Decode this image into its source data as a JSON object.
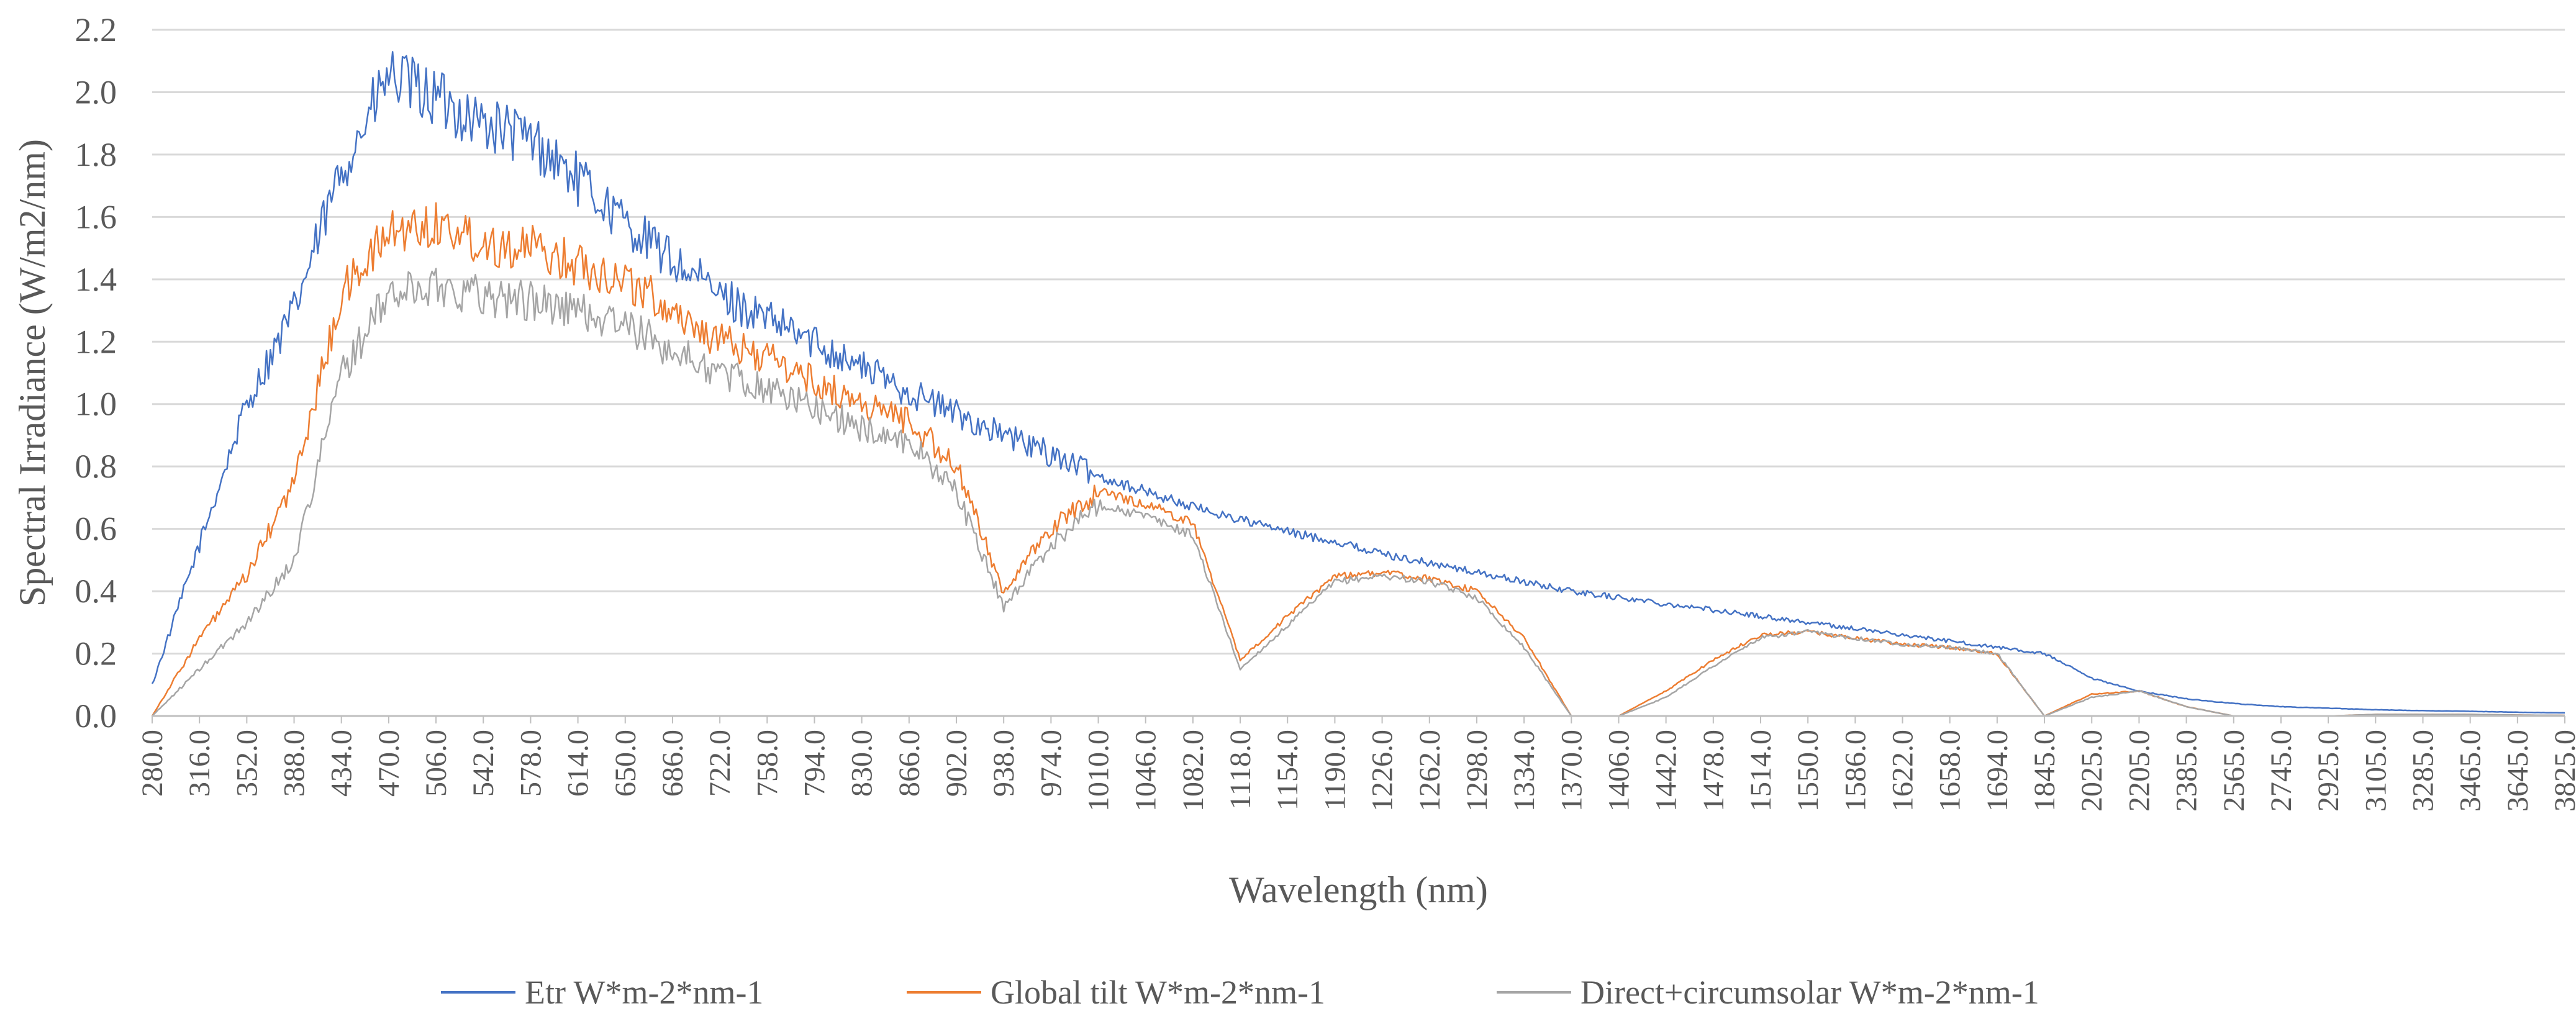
{
  "chart_data": {
    "type": "line",
    "title": "",
    "xlabel": "Wavelength (nm)",
    "ylabel": "Spectral Irradiance (W/m2/nm)",
    "ylim": [
      0,
      2.2
    ],
    "y_ticks": [
      "0.0",
      "0.2",
      "0.4",
      "0.6",
      "0.8",
      "1.0",
      "1.2",
      "1.4",
      "1.6",
      "1.8",
      "2.0",
      "2.2"
    ],
    "grid": "horizontal",
    "legend_position": "bottom",
    "x_scale": "categorical (variable nm spacing)",
    "categories": [
      "280.0",
      "316.0",
      "352.0",
      "388.0",
      "434.0",
      "470.0",
      "506.0",
      "542.0",
      "578.0",
      "614.0",
      "650.0",
      "686.0",
      "722.0",
      "758.0",
      "794.0",
      "830.0",
      "866.0",
      "902.0",
      "938.0",
      "974.0",
      "1010.0",
      "1046.0",
      "1082.0",
      "1118.0",
      "1154.0",
      "1190.0",
      "1226.0",
      "1262.0",
      "1298.0",
      "1334.0",
      "1370.0",
      "1406.0",
      "1442.0",
      "1478.0",
      "1514.0",
      "1550.0",
      "1586.0",
      "1622.0",
      "1658.0",
      "1694.0",
      "1845.0",
      "2025.0",
      "2205.0",
      "2385.0",
      "2565.0",
      "2745.0",
      "2925.0",
      "3105.0",
      "3285.0",
      "3465.0",
      "3645.0",
      "3825.0"
    ],
    "series": [
      {
        "name": "Etr W*m-2*nm-1",
        "color": "#4472C4",
        "values": [
          0.1,
          0.55,
          1.0,
          1.3,
          1.75,
          2.05,
          1.98,
          1.9,
          1.85,
          1.72,
          1.58,
          1.46,
          1.35,
          1.27,
          1.2,
          1.12,
          1.04,
          0.97,
          0.9,
          0.84,
          0.77,
          0.72,
          0.67,
          0.63,
          0.59,
          0.56,
          0.52,
          0.49,
          0.46,
          0.43,
          0.4,
          0.38,
          0.36,
          0.34,
          0.32,
          0.3,
          0.28,
          0.26,
          0.24,
          0.22,
          0.2,
          0.12,
          0.08,
          0.055,
          0.04,
          0.03,
          0.025,
          0.02,
          0.017,
          0.015,
          0.012,
          0.01
        ]
      },
      {
        "name": "Global tilt  W*m-2*nm-1",
        "color": "#ED7D31",
        "values": [
          0.0,
          0.25,
          0.45,
          0.75,
          1.35,
          1.55,
          1.58,
          1.52,
          1.5,
          1.45,
          1.4,
          1.3,
          1.2,
          1.15,
          1.07,
          1.0,
          0.95,
          0.8,
          0.4,
          0.6,
          0.72,
          0.68,
          0.62,
          0.18,
          0.32,
          0.45,
          0.46,
          0.44,
          0.4,
          0.25,
          0.0,
          0.0,
          0.08,
          0.18,
          0.26,
          0.27,
          0.25,
          0.23,
          0.22,
          0.2,
          0.0,
          0.07,
          0.08,
          0.03,
          0.0,
          0.0,
          0.0,
          0.005,
          0.005,
          0.005,
          0.003,
          0.002
        ]
      },
      {
        "name": "Direct+circumsolar W*m-2*nm-1",
        "color": "#A5A5A5",
        "values": [
          0.0,
          0.15,
          0.3,
          0.5,
          1.1,
          1.35,
          1.38,
          1.35,
          1.33,
          1.3,
          1.25,
          1.17,
          1.1,
          1.05,
          0.99,
          0.92,
          0.88,
          0.72,
          0.35,
          0.55,
          0.68,
          0.64,
          0.58,
          0.15,
          0.29,
          0.43,
          0.45,
          0.43,
          0.38,
          0.22,
          0.0,
          0.0,
          0.06,
          0.16,
          0.25,
          0.27,
          0.25,
          0.23,
          0.22,
          0.2,
          0.0,
          0.06,
          0.08,
          0.03,
          0.0,
          0.0,
          0.0,
          0.005,
          0.005,
          0.005,
          0.003,
          0.002
        ]
      }
    ]
  }
}
